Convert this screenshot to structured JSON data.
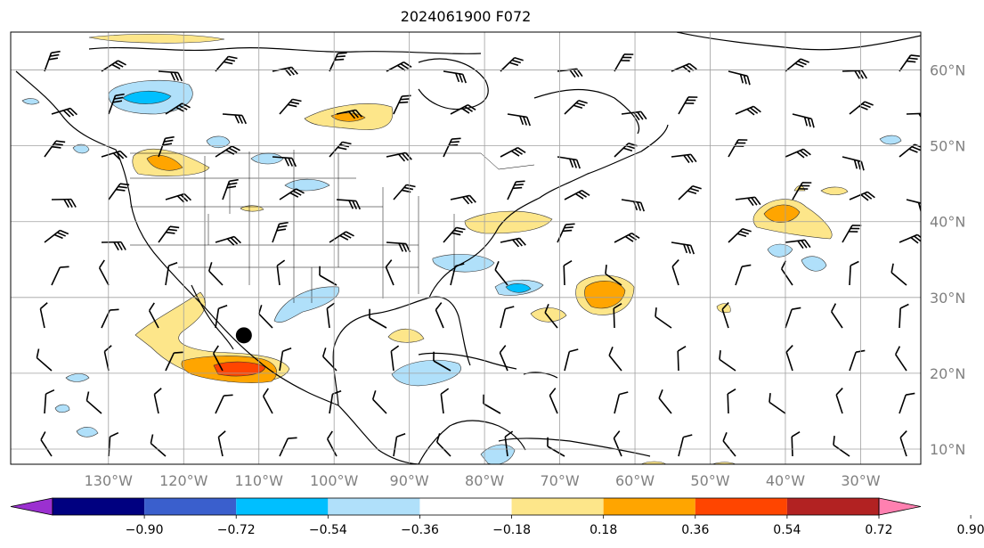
{
  "title": "2024061900 F072",
  "map": {
    "lon_range": [
      -143,
      -22
    ],
    "lat_range": [
      8,
      65
    ],
    "lon_ticks": [
      "130°W",
      "120°W",
      "110°W",
      "100°W",
      "90°W",
      "80°W",
      "70°W",
      "60°W",
      "50°W",
      "40°W",
      "30°W"
    ],
    "lat_ticks": [
      "60°N",
      "50°N",
      "40°N",
      "30°N",
      "20°N",
      "10°N"
    ],
    "tick_label_color": "#808080",
    "gridline_color": "#a0a0a0",
    "marker": {
      "lon": -112,
      "lat": 25,
      "color": "#000000"
    }
  },
  "colorbar": {
    "levels": [
      "−0.90",
      "−0.72",
      "−0.54",
      "−0.36",
      "−0.18",
      "0.18",
      "0.36",
      "0.54",
      "0.72",
      "0.90"
    ],
    "colors": [
      "#9b30d0",
      "#000080",
      "#3a5fcd",
      "#00bfff",
      "#b0e0fa",
      "#ffffff",
      "#fde68a",
      "#ffa500",
      "#ff4500",
      "#b22222",
      "#ff80b0"
    ],
    "extend": "both"
  }
}
